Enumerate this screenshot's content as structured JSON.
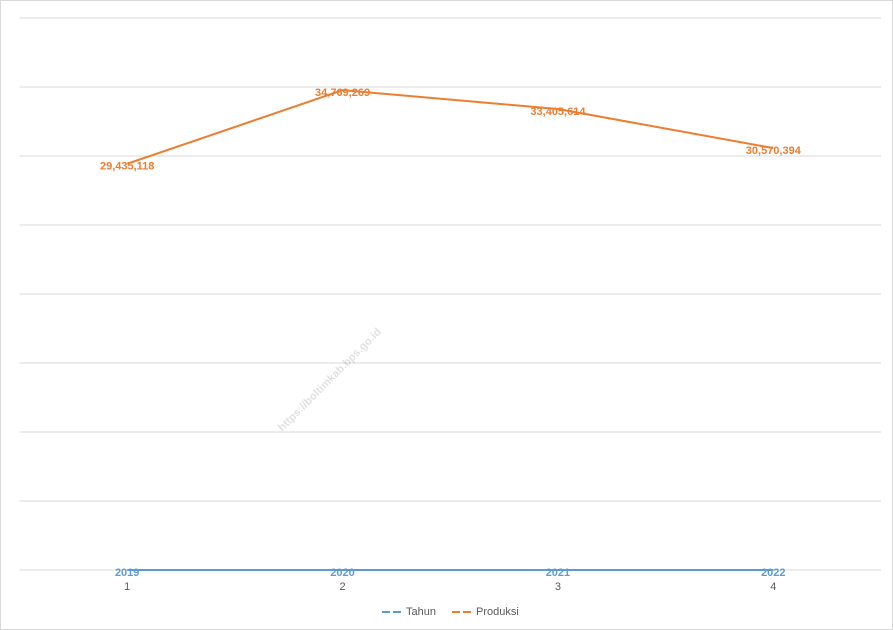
{
  "chart_data": {
    "type": "line",
    "categories": [
      "1",
      "2",
      "3",
      "4"
    ],
    "series": [
      {
        "name": "Tahun",
        "color": "#5b9bd5",
        "values": [
          2019,
          2020,
          2021,
          2022
        ]
      },
      {
        "name": "Produksi",
        "color": "#ed7d31",
        "values": [
          29435118,
          34769269,
          33405614,
          30570394
        ],
        "value_labels": [
          "29,435,118",
          "34,769,269",
          "33,405,614",
          "30,570,394"
        ]
      }
    ],
    "ylim": [
      0,
      40000000
    ],
    "yticks": [
      0,
      5000000,
      10000000,
      15000000,
      20000000,
      25000000,
      30000000,
      35000000,
      40000000
    ],
    "grid": true,
    "legend": "bottom",
    "watermark": "https://boltimkab.bps.go.id"
  }
}
